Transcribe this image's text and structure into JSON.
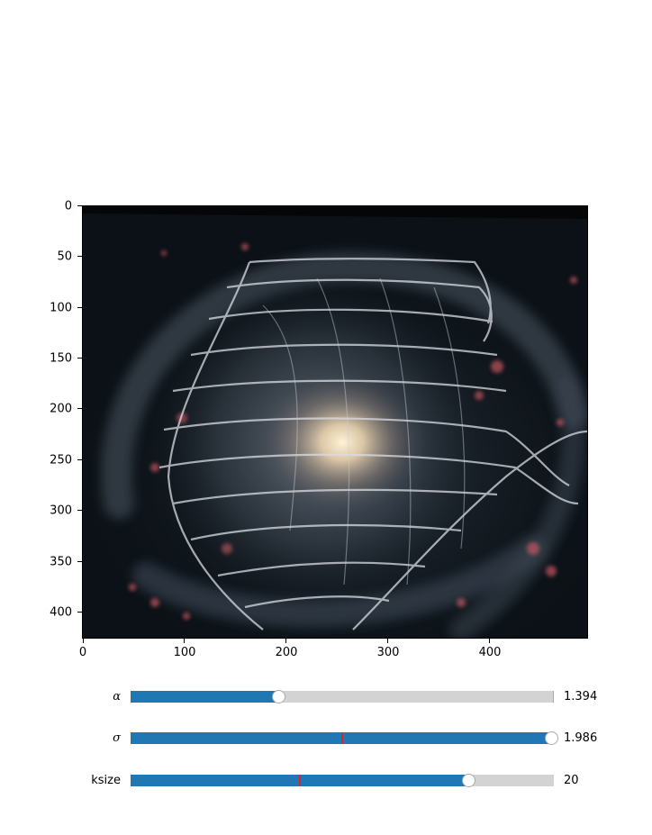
{
  "axes": {
    "y_ticks": [
      "0",
      "50",
      "100",
      "150",
      "200",
      "250",
      "300",
      "350",
      "400"
    ],
    "x_ticks": [
      "0",
      "100",
      "200",
      "300",
      "400"
    ],
    "xlim": [
      0,
      497
    ],
    "ylim": [
      427,
      0
    ]
  },
  "image": {
    "subject": "distorted spiral galaxy",
    "background_color": "#0b1116"
  },
  "sliders": [
    {
      "label": "α",
      "value_text": "1.394",
      "fraction": 0.35,
      "init_fraction": null
    },
    {
      "label": "σ",
      "value_text": "1.986",
      "fraction": 0.995,
      "init_fraction": 0.5
    },
    {
      "label": "ksize",
      "value_text": "20",
      "fraction": 0.8,
      "init_fraction": 0.4
    }
  ],
  "colors": {
    "slider_fill": "#1f77b4",
    "slider_track": "#d3d3d3",
    "init_marker": "#d62728"
  }
}
